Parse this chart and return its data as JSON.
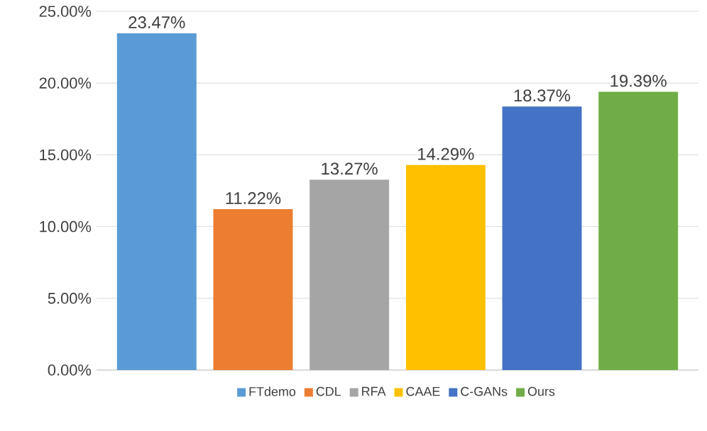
{
  "chart_data": {
    "type": "bar",
    "categories": [
      null
    ],
    "series": [
      {
        "name": "FTdemo",
        "color": "#5b9bd5",
        "values": [
          23.47
        ],
        "value_labels": [
          "23.47%"
        ]
      },
      {
        "name": "CDL",
        "color": "#ed7d31",
        "values": [
          11.22
        ],
        "value_labels": [
          "11.22%"
        ]
      },
      {
        "name": "RFA",
        "color": "#a5a5a5",
        "values": [
          13.27
        ],
        "value_labels": [
          "13.27%"
        ]
      },
      {
        "name": "CAAE",
        "color": "#ffc000",
        "values": [
          14.29
        ],
        "value_labels": [
          "14.29%"
        ]
      },
      {
        "name": "C-GANs",
        "color": "#4472c4",
        "values": [
          18.37
        ],
        "value_labels": [
          "18.37%"
        ]
      },
      {
        "name": "Ours",
        "color": "#70ad47",
        "values": [
          19.39
        ],
        "value_labels": [
          "19.39%"
        ]
      }
    ],
    "ylim": [
      0,
      25
    ],
    "yticks": [
      {
        "value": 0,
        "label": "0.00%"
      },
      {
        "value": 5,
        "label": "5.00%"
      },
      {
        "value": 10,
        "label": "10.00%"
      },
      {
        "value": 15,
        "label": "15.00%"
      },
      {
        "value": 20,
        "label": "20.00%"
      },
      {
        "value": 25,
        "label": "25.00%"
      }
    ],
    "grid": "y",
    "legend": "bottom"
  }
}
